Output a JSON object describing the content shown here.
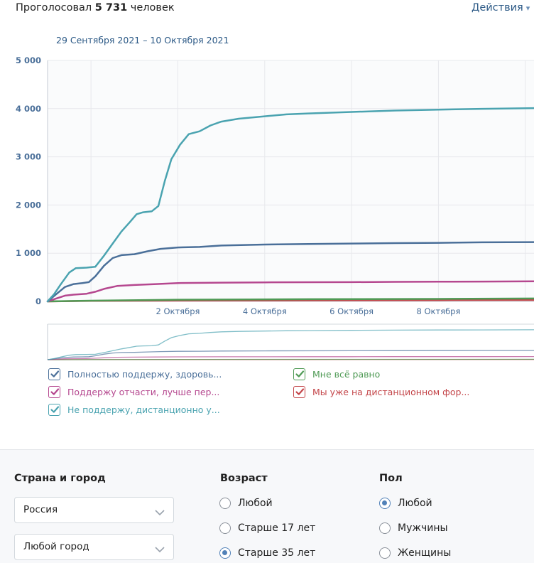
{
  "header": {
    "voted_prefix": "Проголосовал",
    "voted_count": "5 731",
    "voted_suffix": "человек",
    "actions_label": "Действия",
    "date_range": "29 Сентября 2021 – 10 Октября 2021"
  },
  "chart_data": {
    "type": "line",
    "y_ticks": [
      "0",
      "1 000",
      "2 000",
      "3 000",
      "4 000",
      "5 000"
    ],
    "ylim": [
      0,
      5000
    ],
    "x_labels": [
      {
        "day": 3.0,
        "label": "2 Октября"
      },
      {
        "day": 5.0,
        "label": "4 Октября"
      },
      {
        "day": 7.0,
        "label": "6 Октября"
      },
      {
        "day": 9.0,
        "label": "8 Октября"
      }
    ],
    "xlim": [
      0,
      11.2
    ],
    "grid": true,
    "series": [
      {
        "name": "Полностью поддержу, здоровь...",
        "color": "#4a6f99",
        "points": [
          [
            0,
            0
          ],
          [
            0.2,
            150
          ],
          [
            0.4,
            300
          ],
          [
            0.6,
            360
          ],
          [
            0.8,
            380
          ],
          [
            0.95,
            400
          ],
          [
            1.1,
            520
          ],
          [
            1.3,
            740
          ],
          [
            1.5,
            900
          ],
          [
            1.7,
            960
          ],
          [
            2.0,
            980
          ],
          [
            2.3,
            1040
          ],
          [
            2.6,
            1090
          ],
          [
            3.0,
            1120
          ],
          [
            3.5,
            1130
          ],
          [
            4.0,
            1160
          ],
          [
            5.0,
            1180
          ],
          [
            6.0,
            1190
          ],
          [
            7.0,
            1200
          ],
          [
            8.0,
            1210
          ],
          [
            9.0,
            1215
          ],
          [
            10.0,
            1225
          ],
          [
            11.2,
            1230
          ]
        ]
      },
      {
        "name": "Поддержу отчасти, лучше пер...",
        "color": "#b5478f",
        "points": [
          [
            0,
            0
          ],
          [
            0.2,
            60
          ],
          [
            0.4,
            120
          ],
          [
            0.6,
            140
          ],
          [
            0.9,
            160
          ],
          [
            1.1,
            200
          ],
          [
            1.3,
            260
          ],
          [
            1.6,
            320
          ],
          [
            2.0,
            340
          ],
          [
            2.5,
            360
          ],
          [
            3.0,
            380
          ],
          [
            4.0,
            390
          ],
          [
            5.0,
            395
          ],
          [
            6.0,
            398
          ],
          [
            7.0,
            400
          ],
          [
            8.0,
            405
          ],
          [
            9.0,
            408
          ],
          [
            10.0,
            412
          ],
          [
            11.2,
            418
          ]
        ]
      },
      {
        "name": "Не поддержу, дистанционно у...",
        "color": "#4aa3b0",
        "points": [
          [
            0,
            0
          ],
          [
            0.15,
            150
          ],
          [
            0.3,
            350
          ],
          [
            0.5,
            600
          ],
          [
            0.65,
            690
          ],
          [
            0.9,
            700
          ],
          [
            1.1,
            720
          ],
          [
            1.3,
            950
          ],
          [
            1.5,
            1200
          ],
          [
            1.7,
            1450
          ],
          [
            1.9,
            1650
          ],
          [
            2.05,
            1810
          ],
          [
            2.2,
            1850
          ],
          [
            2.4,
            1870
          ],
          [
            2.55,
            1980
          ],
          [
            2.7,
            2500
          ],
          [
            2.85,
            2950
          ],
          [
            3.05,
            3250
          ],
          [
            3.25,
            3470
          ],
          [
            3.5,
            3530
          ],
          [
            3.75,
            3650
          ],
          [
            4.0,
            3730
          ],
          [
            4.4,
            3790
          ],
          [
            5.0,
            3840
          ],
          [
            5.5,
            3880
          ],
          [
            6.0,
            3900
          ],
          [
            7.0,
            3930
          ],
          [
            8.0,
            3960
          ],
          [
            9.0,
            3980
          ],
          [
            10.0,
            3995
          ],
          [
            11.2,
            4010
          ]
        ]
      },
      {
        "name": "Мне всё равно",
        "color": "#4f9a55",
        "points": [
          [
            0,
            0
          ],
          [
            1.0,
            15
          ],
          [
            3.0,
            35
          ],
          [
            6.0,
            45
          ],
          [
            9.0,
            52
          ],
          [
            11.2,
            60
          ]
        ]
      },
      {
        "name": "Мы уже на дистанционном фор...",
        "color": "#c4464a",
        "points": [
          [
            0,
            0
          ],
          [
            1.0,
            10
          ],
          [
            3.0,
            18
          ],
          [
            6.0,
            22
          ],
          [
            9.0,
            26
          ],
          [
            11.2,
            30
          ]
        ]
      }
    ]
  },
  "legend": [
    {
      "label": "Полностью поддержу, здоровь...",
      "color": "#4a6f99",
      "checked": true
    },
    {
      "label": "Поддержу отчасти, лучше пер...",
      "color": "#b5478f",
      "checked": true
    },
    {
      "label": "Не поддержу, дистанционно у...",
      "color": "#4aa3b0",
      "checked": true
    },
    {
      "label": "Мне всё равно",
      "color": "#4f9a55",
      "checked": true
    },
    {
      "label": "Мы уже на дистанционном фор...",
      "color": "#c4464a",
      "checked": true
    }
  ],
  "filters": {
    "location": {
      "title": "Страна и город",
      "country": "Россия",
      "city": "Любой город"
    },
    "age": {
      "title": "Возраст",
      "options": [
        "Любой",
        "Старше 17 лет",
        "Старше 35 лет"
      ],
      "selected": "Старше 35 лет"
    },
    "gender": {
      "title": "Пол",
      "options": [
        "Любой",
        "Мужчины",
        "Женщины"
      ],
      "selected": "Любой"
    }
  },
  "colors": {
    "accent": "#5181b8",
    "link": "#2a5885",
    "grid": "#e7e8ec"
  }
}
